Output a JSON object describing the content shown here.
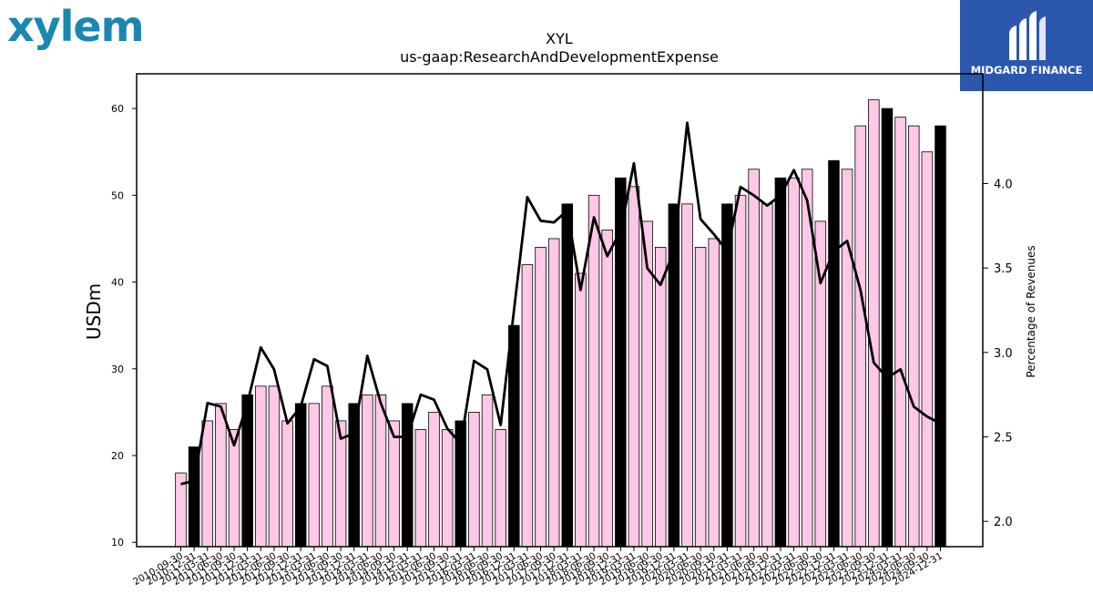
{
  "logo_text": "xylem",
  "brand": {
    "name": "MIDGARD FINANCE"
  },
  "colors": {
    "logo": "#1a87b1",
    "brand_bg": "#2b57ad",
    "bar_quarter": "#ffc8e6",
    "bar_q4": "#000000",
    "line": "#000000"
  },
  "chart_data": {
    "type": "bar",
    "title": "XYL",
    "subtitle": "us-gaap:ResearchAndDevelopmentExpense",
    "ylabel": "USDm",
    "y2label": "Percentage of Revenues",
    "ylim": [
      9.5,
      64
    ],
    "y2lim": [
      1.85,
      4.65
    ],
    "yticks": [
      10,
      20,
      30,
      40,
      50,
      60
    ],
    "y2ticks": [
      "2.0",
      "2.5",
      "3.0",
      "3.5",
      "4.0"
    ],
    "categories": [
      "2010-09-30",
      "2010-12-31",
      "2011-03-31",
      "2011-06-30",
      "2011-09-30",
      "2011-12-31",
      "2012-03-31",
      "2012-06-30",
      "2012-09-30",
      "2012-12-31",
      "2013-03-31",
      "2013-06-30",
      "2013-09-30",
      "2013-12-31",
      "2014-03-31",
      "2014-06-30",
      "2014-09-30",
      "2014-12-31",
      "2015-03-31",
      "2015-06-30",
      "2015-09-30",
      "2015-12-31",
      "2016-03-31",
      "2016-06-30",
      "2016-09-30",
      "2016-12-31",
      "2017-03-31",
      "2017-06-30",
      "2017-09-30",
      "2017-12-31",
      "2018-03-31",
      "2018-06-30",
      "2018-09-30",
      "2018-12-31",
      "2019-03-31",
      "2019-06-30",
      "2019-09-30",
      "2019-12-31",
      "2020-03-31",
      "2020-06-30",
      "2020-09-30",
      "2020-12-31",
      "2021-03-31",
      "2021-06-30",
      "2021-09-30",
      "2021-12-31",
      "2022-03-31",
      "2022-06-30",
      "2022-09-30",
      "2022-12-31",
      "2023-03-31",
      "2023-06-30",
      "2023-09-30",
      "2023-12-31",
      "2024-03-31",
      "2024-06-30",
      "2024-09-30",
      "2024-12-31"
    ],
    "xtick_labels": [
      "2010-09-30",
      "2010-12-31",
      "2011-03-31",
      "2011-06-30",
      "2011-09-30",
      "2011-12-31",
      "2012-03-31",
      "2012-06-30",
      "2012-09-30",
      "2012-12-31",
      "2013-03-31",
      "2013-06-30",
      "2013-09-30",
      "2013-12-31",
      "2014-03-31",
      "2014-06-30",
      "2014-09-30",
      "2014-12-31",
      "2015-03-31",
      "2015-06-30",
      "2015-09-30",
      "2015-12-31",
      "2016-03-31",
      "2016-06-30",
      "2016-09-30",
      "2016-12-31",
      "2017-03-31",
      "2017-06-30",
      "2017-09-30",
      "2017-12-31",
      "2018-03-31",
      "2018-06-30",
      "2018-09-30",
      "2018-12-31",
      "2019-03-31",
      "2019-06-30",
      "2019-09-30",
      "2019-12-31",
      "2020-03-31",
      "2020-06-30",
      "2020-09-30",
      "2020-12-31",
      "2021-03-31",
      "2021-06-30",
      "2021-09-30",
      "2021-12-31",
      "2022-03-31",
      "2022-06-30",
      "2022-09-30",
      "2022-12-31",
      "2023-03-31",
      "2023-06-30",
      "2023-09-30",
      "2023-12-31",
      "2024-03-31",
      "2024-06-30",
      "2024-09-30",
      "2024-12-31"
    ],
    "series": [
      {
        "type": "bar",
        "values": [
          18,
          21,
          24,
          26,
          23,
          27,
          28,
          28,
          24,
          26,
          26,
          28,
          24,
          26,
          27,
          27,
          24,
          26,
          23,
          25,
          23,
          24,
          25,
          27,
          23,
          35,
          42,
          44,
          45,
          49,
          41,
          50,
          46,
          52,
          51,
          47,
          44,
          49,
          49,
          44,
          45,
          49,
          50,
          53,
          49,
          52,
          52,
          53,
          47,
          54,
          53,
          58,
          61,
          60,
          59,
          58,
          55,
          58
        ],
        "q4_flags": [
          false,
          true,
          false,
          false,
          false,
          true,
          false,
          false,
          false,
          true,
          false,
          false,
          false,
          true,
          false,
          false,
          false,
          true,
          false,
          false,
          false,
          true,
          false,
          false,
          false,
          true,
          false,
          false,
          false,
          true,
          false,
          false,
          false,
          true,
          false,
          false,
          false,
          true,
          false,
          false,
          false,
          true,
          false,
          false,
          false,
          true,
          false,
          false,
          false,
          true,
          false,
          false,
          false,
          true,
          false,
          false,
          false,
          true
        ]
      },
      {
        "type": "line",
        "axis": "right",
        "values": [
          2.22,
          2.24,
          2.7,
          2.68,
          2.45,
          2.7,
          3.03,
          2.9,
          2.58,
          2.68,
          2.96,
          2.92,
          2.49,
          2.52,
          2.98,
          2.7,
          2.5,
          2.5,
          2.75,
          2.72,
          2.55,
          2.46,
          2.95,
          2.9,
          2.57,
          3.25,
          3.92,
          3.78,
          3.77,
          3.84,
          3.37,
          3.8,
          3.57,
          3.72,
          4.12,
          3.5,
          3.4,
          3.6,
          4.36,
          3.79,
          3.7,
          3.6,
          3.98,
          3.93,
          3.87,
          3.93,
          4.08,
          3.9,
          3.41,
          3.6,
          3.66,
          3.37,
          2.94,
          2.85,
          2.9,
          2.68,
          2.62,
          2.58
        ]
      }
    ]
  }
}
